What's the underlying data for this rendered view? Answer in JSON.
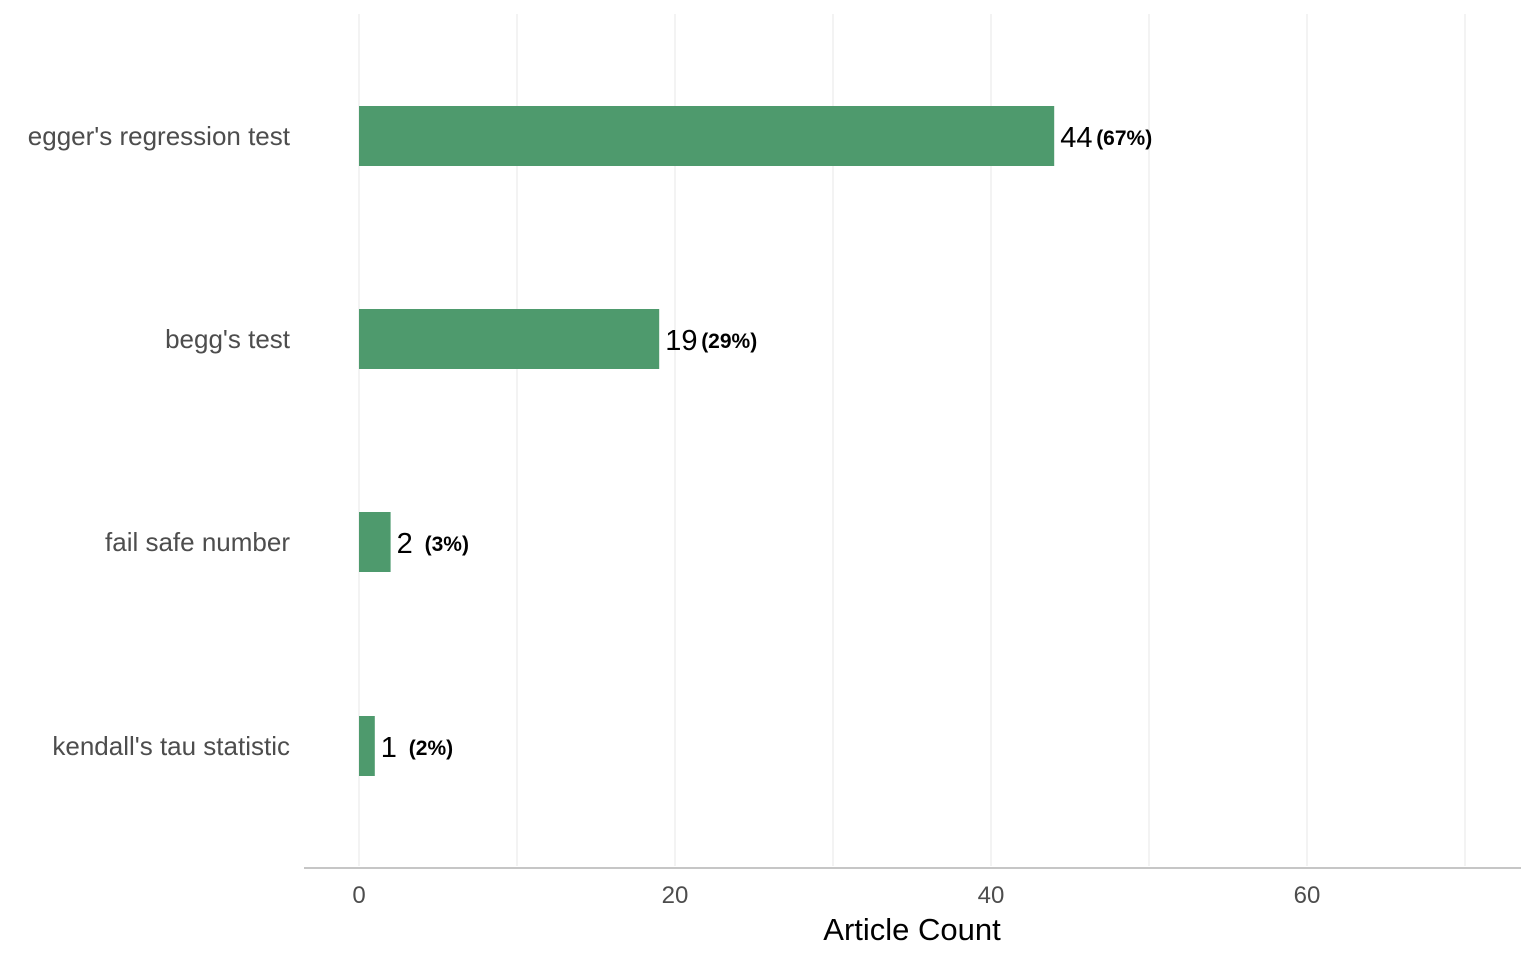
{
  "chart_data": {
    "type": "bar",
    "orientation": "horizontal",
    "categories": [
      "egger's regression test",
      "begg's test",
      "fail safe number",
      "kendall's tau statistic"
    ],
    "values": [
      44,
      19,
      2,
      1
    ],
    "percent_labels": [
      "(67%)",
      "(29%)",
      "(3%)",
      "(2%)"
    ],
    "xlabel": "Article Count",
    "ylabel": "",
    "xlim": [
      0,
      70
    ],
    "xticks": [
      "0",
      "20",
      "40",
      "60"
    ],
    "xtick_values": [
      0,
      20,
      40,
      60
    ],
    "grid": "vertical",
    "bar_color": "#4e9a6d",
    "grid_color": "#ebebeb",
    "axis_color": "#b3b3b3"
  }
}
